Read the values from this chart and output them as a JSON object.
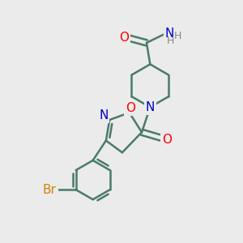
{
  "bg_color": "#ebebeb",
  "bond_color": "#4a7a6a",
  "atom_colors": {
    "O": "#ff0000",
    "N": "#0000cd",
    "Br": "#cc8800",
    "NH_color": "#888888"
  },
  "bond_width": 1.8,
  "dbo": 0.18
}
